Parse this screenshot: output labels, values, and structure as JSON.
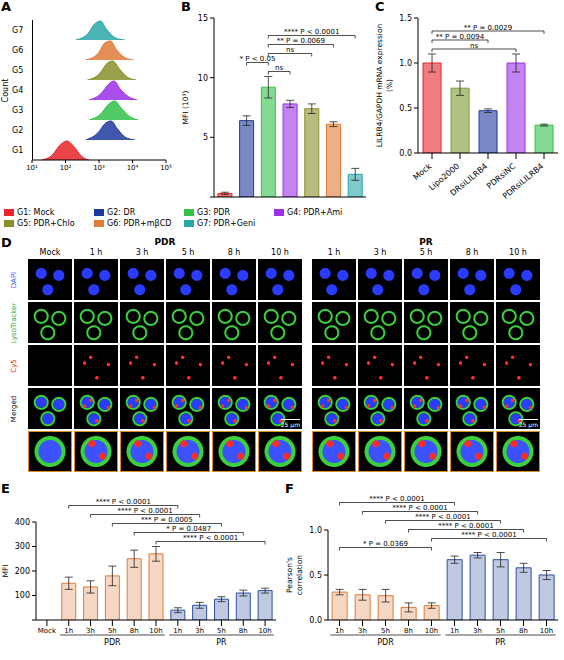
{
  "chart_data": [
    {
      "panel": "A",
      "type": "area",
      "y_label": "Count",
      "log": "x",
      "xlim": [
        10,
        100000
      ],
      "xticks": [
        {
          "value": 10,
          "label": "10¹"
        },
        {
          "value": 100,
          "label": "10²"
        },
        {
          "value": 1000,
          "label": "10³"
        },
        {
          "value": 10000,
          "label": "10⁴"
        },
        {
          "value": 100000,
          "label": "10⁵"
        }
      ],
      "legend": "bottom",
      "series": [
        {
          "name": "G1: Mock",
          "label": "G1",
          "color": "#e8252a",
          "x": [
            20,
            40,
            70,
            110,
            180,
            300,
            500
          ],
          "values": [
            0,
            0.25,
            0.8,
            1,
            0.7,
            0.2,
            0
          ]
        },
        {
          "name": "G2: DR",
          "label": "G2",
          "color": "#1f3a9e",
          "x": [
            400,
            900,
            1600,
            2300,
            3500,
            6000,
            12000
          ],
          "values": [
            0,
            0.35,
            0.9,
            1,
            0.6,
            0.15,
            0
          ]
        },
        {
          "name": "G3: PDR",
          "label": "G3",
          "color": "#34c24a",
          "x": [
            500,
            1100,
            2000,
            3000,
            4500,
            8000,
            15000
          ],
          "values": [
            0,
            0.3,
            0.85,
            1,
            0.65,
            0.2,
            0
          ]
        },
        {
          "name": "G4: PDR+Ami",
          "label": "G4",
          "color": "#9b30e8",
          "x": [
            500,
            1100,
            2000,
            2800,
            4200,
            7500,
            14000
          ],
          "values": [
            0,
            0.3,
            0.85,
            1,
            0.6,
            0.18,
            0
          ]
        },
        {
          "name": "G5: PDR+Chlo",
          "label": "G5",
          "color": "#8a8f2a",
          "x": [
            450,
            1000,
            1800,
            2600,
            4000,
            7000,
            13000
          ],
          "values": [
            0,
            0.3,
            0.9,
            1,
            0.6,
            0.15,
            0
          ]
        },
        {
          "name": "G6: PDR+mβCD",
          "label": "G6",
          "color": "#e07b39",
          "x": [
            400,
            900,
            1500,
            2200,
            3300,
            6000,
            11000
          ],
          "values": [
            0,
            0.3,
            0.9,
            1,
            0.55,
            0.12,
            0
          ]
        },
        {
          "name": "G7: PDR+Geni",
          "label": "G7",
          "color": "#2aa6a6",
          "x": [
            200,
            450,
            750,
            1100,
            1700,
            3000,
            6000
          ],
          "values": [
            0,
            0.3,
            0.85,
            1,
            0.55,
            0.12,
            0
          ]
        }
      ]
    },
    {
      "panel": "B",
      "type": "bar",
      "y_label": "MFI (10³)",
      "categories": [
        null,
        null,
        null,
        null,
        null,
        null,
        null
      ],
      "values": [
        0.3,
        6.4,
        9.2,
        7.8,
        7.4,
        6.1,
        1.9
      ],
      "errors": [
        0.1,
        0.4,
        0.9,
        0.3,
        0.4,
        0.2,
        0.5
      ],
      "colors": [
        "#e8252a",
        "#1f3a9e",
        "#34c24a",
        "#9b30e8",
        "#8a8f2a",
        "#e07b39",
        "#2aa6a6"
      ],
      "ylim": [
        0,
        15
      ],
      "yticks": [
        0,
        5,
        10,
        15
      ],
      "tick_labels": "y",
      "comparisons": [
        {
          "pair": [
            2,
            3
          ],
          "label": "ns"
        },
        {
          "pair": [
            1,
            2
          ],
          "label": "* P < 0.05"
        },
        {
          "pair": [
            2,
            4
          ],
          "label": "ns"
        },
        {
          "pair": [
            2,
            5
          ],
          "label": "** P = 0.0069"
        },
        {
          "pair": [
            2,
            6
          ],
          "label": "**** P < 0.0001"
        }
      ]
    },
    {
      "panel": "C",
      "type": "bar",
      "y_label": "LILRB4/GAPDH mRNA expression (%)",
      "categories": [
        "Mock",
        "Lipo2000",
        "DRsiLILRB4",
        "PDRsiNC",
        "PDRsiLILRB4"
      ],
      "values": [
        1.0,
        0.72,
        0.47,
        1.0,
        0.31
      ],
      "errors": [
        0.1,
        0.08,
        0.02,
        0.1,
        0.01
      ],
      "colors": [
        "#e8252a",
        "#7a9a2e",
        "#1f3a9e",
        "#9b30e8",
        "#34c24a"
      ],
      "ylim": [
        0,
        1.5
      ],
      "yticks": [
        {
          "value": 0,
          "label": "0.0"
        },
        0.5,
        {
          "value": 1,
          "label": "1.0"
        },
        1.5
      ],
      "comparisons": [
        {
          "pair": [
            0,
            3
          ],
          "label": "ns"
        },
        {
          "pair": [
            0,
            2
          ],
          "label": "** P = 0.0094"
        },
        {
          "pair": [
            0,
            4
          ],
          "label": "** P = 0.0029"
        }
      ]
    },
    {
      "panel": "E",
      "type": "bar",
      "y_label": "MFI",
      "categories": [
        "Mock",
        "1h",
        "3h",
        "5h",
        "8h",
        "10h",
        "1h",
        "3h",
        "5h",
        "8h",
        "10h"
      ],
      "values": [
        0,
        150,
        135,
        180,
        250,
        270,
        40,
        60,
        85,
        110,
        120
      ],
      "errors": [
        0,
        25,
        25,
        40,
        35,
        30,
        10,
        12,
        10,
        12,
        10
      ],
      "colors": [
        "#e07b39",
        "#e07b39",
        "#e07b39",
        "#e07b39",
        "#e07b39",
        "#e07b39",
        "#2c4f9e",
        "#2c4f9e",
        "#2c4f9e",
        "#2c4f9e",
        "#2c4f9e"
      ],
      "ylim": [
        0,
        400
      ],
      "yticks": [
        0,
        100,
        200,
        300,
        400
      ],
      "groups": [
        {
          "label": "PDR",
          "span": [
            1,
            5
          ]
        },
        {
          "label": "PR",
          "span": [
            6,
            10
          ]
        }
      ],
      "comparisons": [
        {
          "pair": [
            5,
            10
          ],
          "label": "**** P < 0.0001"
        },
        {
          "pair": [
            4,
            9
          ],
          "label": "* P = 0.0487"
        },
        {
          "pair": [
            3,
            8
          ],
          "label": "*** P = 0.0005"
        },
        {
          "pair": [
            2,
            7
          ],
          "label": "**** P < 0.0001"
        },
        {
          "pair": [
            1,
            6
          ],
          "label": "**** P < 0.0001"
        }
      ]
    },
    {
      "panel": "F",
      "type": "bar",
      "y_label": "Pearson's correlation",
      "categories": [
        "1h",
        "3h",
        "5h",
        "8h",
        "10h",
        "1h",
        "3h",
        "5h",
        "8h",
        "10h"
      ],
      "values": [
        0.31,
        0.28,
        0.27,
        0.14,
        0.16,
        0.67,
        0.72,
        0.67,
        0.58,
        0.5
      ],
      "errors": [
        0.03,
        0.06,
        0.07,
        0.05,
        0.03,
        0.04,
        0.03,
        0.08,
        0.05,
        0.05
      ],
      "colors": [
        "#e07b39",
        "#e07b39",
        "#e07b39",
        "#e07b39",
        "#e07b39",
        "#2c4f9e",
        "#2c4f9e",
        "#2c4f9e",
        "#2c4f9e",
        "#2c4f9e"
      ],
      "ylim": [
        0,
        1
      ],
      "yticks": [
        {
          "value": 0,
          "label": "0.0"
        },
        0.5,
        {
          "value": 1,
          "label": "1.0"
        }
      ],
      "groups": [
        {
          "label": "PDR",
          "span": [
            0,
            4
          ]
        },
        {
          "label": "PR",
          "span": [
            5,
            9
          ]
        }
      ],
      "comparisons": [
        {
          "pair": [
            0,
            4
          ],
          "label": "* P = 0.0369"
        },
        {
          "pair": [
            4,
            9
          ],
          "label": "**** P < 0.0001"
        },
        {
          "pair": [
            3,
            8
          ],
          "label": "**** P < 0.0001"
        },
        {
          "pair": [
            2,
            7
          ],
          "label": "**** P < 0.0001"
        },
        {
          "pair": [
            1,
            6
          ],
          "label": "**** P < 0.0001"
        },
        {
          "pair": [
            0,
            5
          ],
          "label": "**** P < 0.0001"
        }
      ]
    }
  ],
  "image_panel": {
    "panel": "D",
    "groups": [
      {
        "label": "PDR",
        "columns": [
          "Mock",
          "1 h",
          "3 h",
          "5 h",
          "8 h",
          "10 h"
        ]
      },
      {
        "label": "PR",
        "columns": [
          "1 h",
          "3 h",
          "5 h",
          "8 h",
          "10 h"
        ]
      }
    ],
    "rows": [
      "DAPI",
      "LysoTracker",
      "Cy5",
      "Merged"
    ],
    "row_colors": [
      "#3a5bff",
      "#2fa83a",
      "#e02020",
      "#000000"
    ],
    "scale_bar": "25 μm"
  }
}
